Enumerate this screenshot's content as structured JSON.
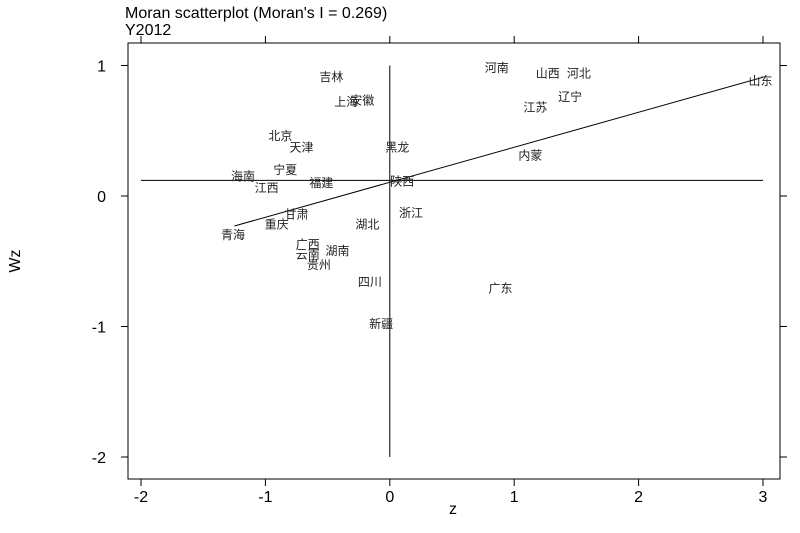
{
  "chart_data": {
    "type": "scatter",
    "title": "Moran scatterplot (Moran's I = 0.269)",
    "subtitle": "Y2012",
    "xlabel": "z",
    "ylabel": "Wz",
    "xlim": [
      -2.1,
      3.1
    ],
    "ylim": [
      -2.1,
      1.1
    ],
    "xticks": [
      -2,
      -1,
      0,
      1,
      2,
      3
    ],
    "yticks": [
      -2,
      -1,
      0,
      1
    ],
    "xtick_labels": [
      "-2",
      "-1",
      "0",
      "1",
      "2",
      "3"
    ],
    "ytick_labels": [
      "-2",
      "-1",
      "0",
      "1"
    ],
    "mean_x": 0,
    "mean_y": 0.12,
    "regression": {
      "x1": -1.25,
      "y1": -0.23,
      "x2": 3.0,
      "y2": 0.91
    },
    "points": [
      {
        "label": "吉林",
        "x": -0.47,
        "y": 0.91
      },
      {
        "label": "河南",
        "x": 0.86,
        "y": 0.98
      },
      {
        "label": "山西",
        "x": 1.27,
        "y": 0.94
      },
      {
        "label": "河北",
        "x": 1.52,
        "y": 0.94
      },
      {
        "label": "山东",
        "x": 2.98,
        "y": 0.88
      },
      {
        "label": "辽宁",
        "x": 1.45,
        "y": 0.76
      },
      {
        "label": "上海",
        "x": -0.35,
        "y": 0.72
      },
      {
        "label": "安徽",
        "x": -0.22,
        "y": 0.73
      },
      {
        "label": "江苏",
        "x": 1.17,
        "y": 0.68
      },
      {
        "label": "北京",
        "x": -0.88,
        "y": 0.46
      },
      {
        "label": "天津",
        "x": -0.71,
        "y": 0.37
      },
      {
        "label": "黑龙",
        "x": 0.06,
        "y": 0.37
      },
      {
        "label": "内蒙",
        "x": 1.13,
        "y": 0.31
      },
      {
        "label": "宁夏",
        "x": -0.84,
        "y": 0.2
      },
      {
        "label": "海南",
        "x": -1.18,
        "y": 0.15
      },
      {
        "label": "福建",
        "x": -0.55,
        "y": 0.1
      },
      {
        "label": "陕西",
        "x": 0.1,
        "y": 0.11
      },
      {
        "label": "江西",
        "x": -0.99,
        "y": 0.06
      },
      {
        "label": "甘肃",
        "x": -0.75,
        "y": -0.14
      },
      {
        "label": "浙江",
        "x": 0.17,
        "y": -0.13
      },
      {
        "label": "重庆",
        "x": -0.91,
        "y": -0.22
      },
      {
        "label": "湖北",
        "x": -0.18,
        "y": -0.22
      },
      {
        "label": "青海",
        "x": -1.26,
        "y": -0.3
      },
      {
        "label": "广西",
        "x": -0.66,
        "y": -0.37
      },
      {
        "label": "云南",
        "x": -0.66,
        "y": -0.45
      },
      {
        "label": "湖南",
        "x": -0.42,
        "y": -0.42
      },
      {
        "label": "贵州",
        "x": -0.57,
        "y": -0.53
      },
      {
        "label": "四川",
        "x": -0.16,
        "y": -0.66
      },
      {
        "label": "广东",
        "x": 0.89,
        "y": -0.71
      },
      {
        "label": "新疆",
        "x": -0.07,
        "y": -0.98
      }
    ]
  }
}
